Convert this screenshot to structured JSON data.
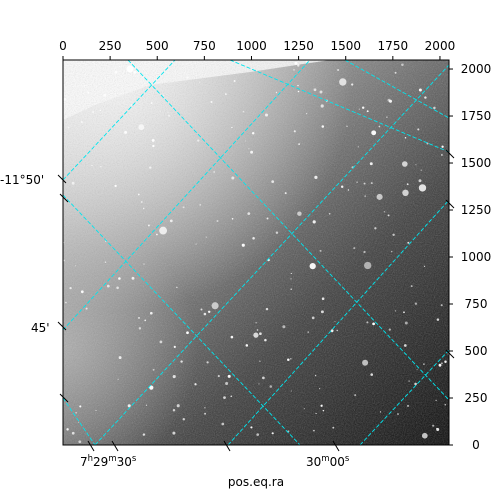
{
  "chart_data": {
    "type": "image",
    "xlabel": "pos.eq.ra",
    "pixel_axes": {
      "x_ticks": [
        0,
        250,
        500,
        750,
        1000,
        1250,
        1500,
        1750,
        2000
      ],
      "y_ticks": [
        0,
        250,
        500,
        750,
        1000,
        1250,
        1500,
        1750,
        2000
      ],
      "xlim": [
        0,
        2048
      ],
      "ylim": [
        0,
        2048
      ]
    },
    "wcs_ticks": {
      "ra": [
        "7h29m30s",
        "30m00s"
      ],
      "dec": [
        "-11°50'",
        "45'"
      ]
    },
    "grid": true,
    "grid_color": "#00e5ee",
    "image_colormap": "grayscale"
  }
}
